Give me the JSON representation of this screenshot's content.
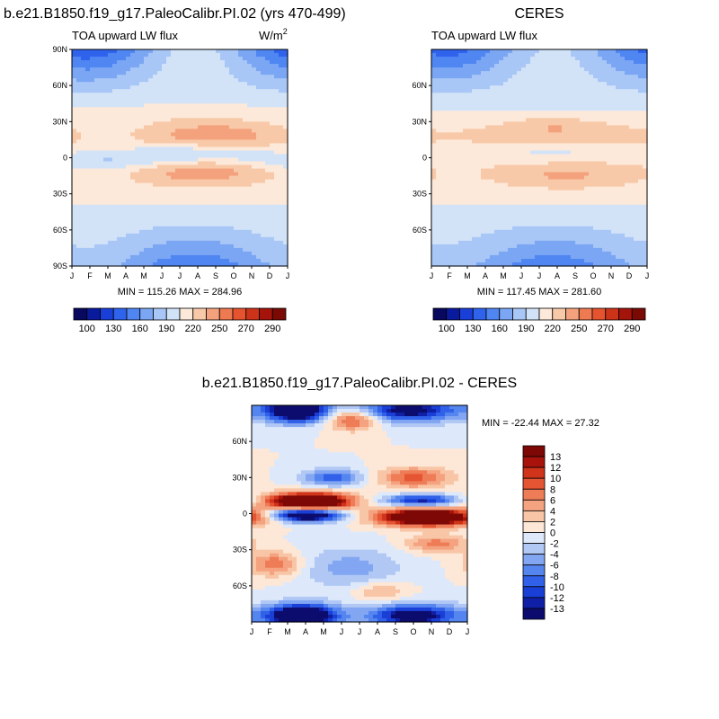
{
  "chart_data": [
    {
      "type": "heatmap",
      "id": "model",
      "title": "b.e21.B1850.f19_g17.PaleoCalibr.PI.02 (yrs 470-499)",
      "subtitle": "TOA upward LW flux",
      "units_base": "W/m",
      "units_exp": "2",
      "x_ticks": [
        "J",
        "F",
        "M",
        "A",
        "M",
        "J",
        "J",
        "A",
        "S",
        "O",
        "N",
        "D",
        "J"
      ],
      "y_ticks": [
        "90N",
        "60N",
        "30N",
        "0",
        "30S",
        "60S",
        "90S"
      ],
      "lat_range": [
        -90,
        90
      ],
      "stats": "MIN = 115.26 MAX = 284.96",
      "colorbar_labels": [
        "100",
        "130",
        "160",
        "190",
        "220",
        "250",
        "270",
        "290"
      ],
      "levels": [
        100,
        115,
        130,
        145,
        160,
        175,
        190,
        205,
        220,
        235,
        250,
        260,
        270,
        280,
        290
      ],
      "min": 115.26,
      "max": 284.96
    },
    {
      "type": "heatmap",
      "id": "obs",
      "title": "CERES",
      "subtitle": "TOA upward LW flux",
      "x_ticks": [
        "J",
        "F",
        "M",
        "A",
        "M",
        "J",
        "J",
        "A",
        "S",
        "O",
        "N",
        "D",
        "J"
      ],
      "y_ticks": [
        "60N",
        "30N",
        "0",
        "30S",
        "60S"
      ],
      "lat_range": [
        -90,
        90
      ],
      "stats": "MIN = 117.45 MAX = 281.60",
      "colorbar_labels": [
        "100",
        "130",
        "160",
        "190",
        "220",
        "250",
        "270",
        "290"
      ],
      "levels": [
        100,
        115,
        130,
        145,
        160,
        175,
        190,
        205,
        220,
        235,
        250,
        260,
        270,
        280,
        290
      ],
      "min": 117.45,
      "max": 281.6
    },
    {
      "type": "heatmap",
      "id": "diff",
      "title": "b.e21.B1850.f19_g17.PaleoCalibr.PI.02 - CERES",
      "x_ticks": [
        "J",
        "F",
        "M",
        "A",
        "M",
        "J",
        "J",
        "A",
        "S",
        "O",
        "N",
        "D",
        "J"
      ],
      "y_ticks": [
        "60N",
        "30N",
        "0",
        "30S",
        "60S"
      ],
      "lat_range": [
        -90,
        90
      ],
      "stats": "MIN = -22.44 MAX =  27.32",
      "colorbar_labels": [
        "13",
        "12",
        "10",
        "8",
        "6",
        "4",
        "2",
        "0",
        "-2",
        "-4",
        "-6",
        "-8",
        "-10",
        "-12",
        "-13"
      ],
      "levels": [
        -13,
        -12,
        -10,
        -8,
        -6,
        -4,
        -2,
        0,
        2,
        4,
        6,
        8,
        10,
        12,
        13
      ],
      "min": -22.44,
      "max": 27.32
    }
  ],
  "colors": {
    "scale15": [
      "#08085e",
      "#0a1a9c",
      "#1a3fd8",
      "#2f63ec",
      "#4f86f2",
      "#7aa6f4",
      "#a8c6f6",
      "#d2e3f8",
      "#fde9da",
      "#f8c9a8",
      "#f4a27d",
      "#ee7a52",
      "#e5542e",
      "#cc3318",
      "#a4140b",
      "#7b0a05"
    ],
    "diff16": [
      "#0c0c6e",
      "#1020a6",
      "#1a3fd6",
      "#3061e8",
      "#5585ef",
      "#82a6f2",
      "#b1c8f5",
      "#dde9fb",
      "#fde7d7",
      "#f8c6a6",
      "#f4a27f",
      "#ee7c57",
      "#e65533",
      "#d0341a",
      "#a8140b",
      "#7d0805"
    ]
  }
}
